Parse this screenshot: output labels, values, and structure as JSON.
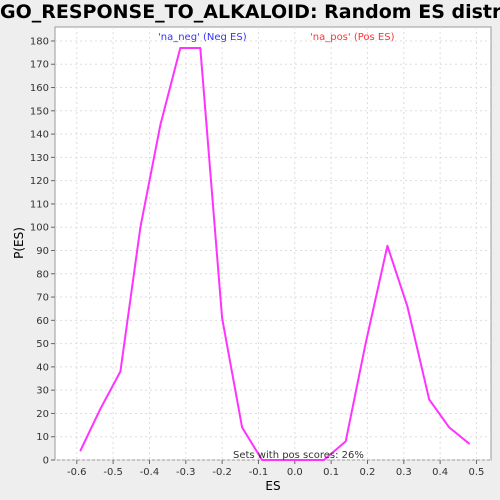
{
  "chart_data": {
    "type": "line",
    "title": "GO_RESPONSE_TO_ALKALOID: Random ES distribution",
    "xlabel": "ES",
    "ylabel": "P(ES)",
    "xlim": [
      -0.66,
      0.54
    ],
    "ylim": [
      0,
      186
    ],
    "x_ticks": [
      -0.6,
      -0.5,
      -0.4,
      -0.3,
      -0.2,
      -0.1,
      0.0,
      0.1,
      0.2,
      0.3,
      0.4,
      0.5
    ],
    "x_tick_labels": [
      "-0.6",
      "-0.5",
      "-0.4",
      "-0.3",
      "-0.2",
      "-0.1",
      "0.0",
      "0.1",
      "0.2",
      "0.3",
      "0.4",
      "0.5"
    ],
    "y_ticks": [
      0,
      10,
      20,
      30,
      40,
      50,
      60,
      70,
      80,
      90,
      100,
      110,
      120,
      130,
      140,
      150,
      160,
      170,
      180
    ],
    "y_tick_labels": [
      "0",
      "10",
      "20",
      "30",
      "40",
      "50",
      "60",
      "70",
      "80",
      "90",
      "100",
      "110",
      "120",
      "130",
      "140",
      "150",
      "160",
      "170",
      "180"
    ],
    "grid": true,
    "legend": [
      {
        "label": "'na_neg' (Neg ES)",
        "color": "#3333ff"
      },
      {
        "label": "'na_pos' (Pos ES)",
        "color": "#ff3333"
      }
    ],
    "annotation": "Sets with pos scores: 26%",
    "series": [
      {
        "color": "#ff33ff",
        "x": [
          -0.59,
          -0.535,
          -0.48,
          -0.425,
          -0.37,
          -0.315,
          -0.26,
          -0.2,
          -0.145,
          -0.09,
          -0.035,
          0.02,
          0.08,
          0.14,
          0.195,
          0.255,
          0.31,
          0.37,
          0.425,
          0.48
        ],
        "y": [
          4,
          22,
          38,
          100,
          144,
          177,
          177,
          61,
          14,
          0,
          0,
          0,
          0,
          8,
          50,
          92,
          66,
          26,
          14,
          7
        ]
      }
    ]
  }
}
